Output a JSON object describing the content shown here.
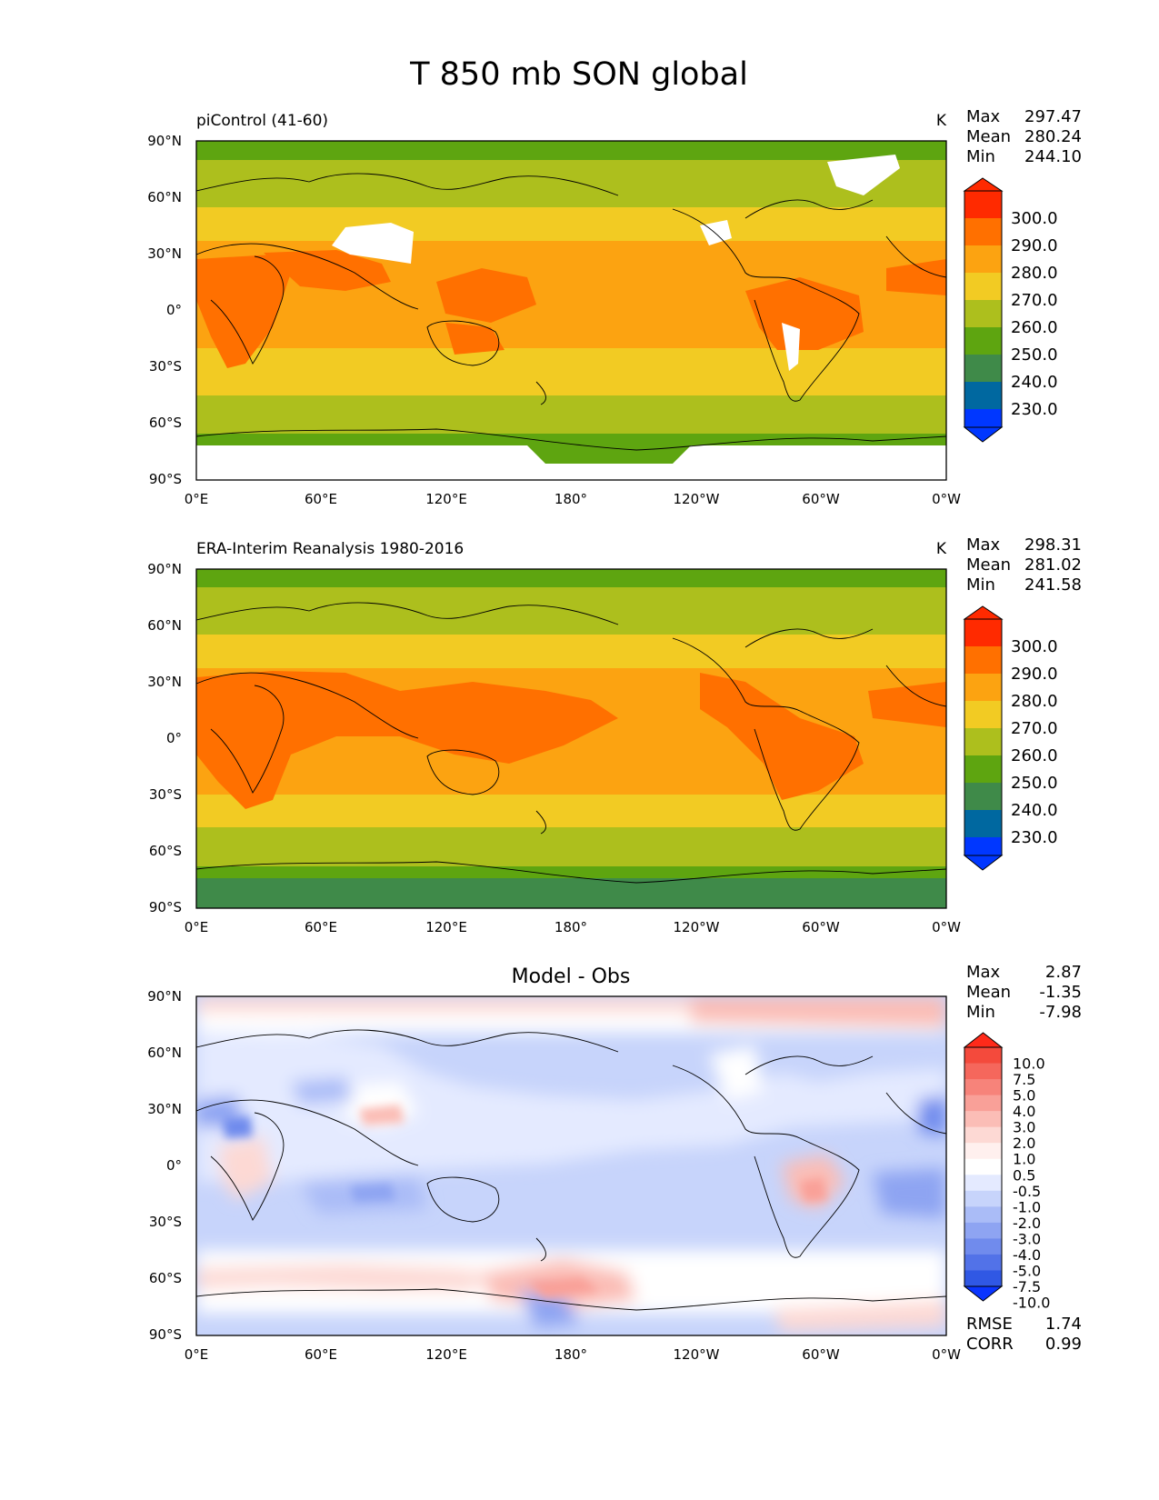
{
  "figure_title": "T 850 mb SON global",
  "chart_data": [
    {
      "type": "heatmap",
      "title": "piControl (41-60)",
      "units": "K",
      "stats": [
        {
          "label": "Max",
          "value": "297.47"
        },
        {
          "label": "Mean",
          "value": "280.24"
        },
        {
          "label": "Min",
          "value": "244.10"
        }
      ],
      "xticks": [
        "0°E",
        "60°E",
        "120°E",
        "180°",
        "120°W",
        "60°W",
        "0°W"
      ],
      "yticks": [
        "90°N",
        "60°N",
        "30°N",
        "0°",
        "30°S",
        "60°S",
        "90°S"
      ],
      "xlim": [
        0,
        360
      ],
      "ylim": [
        -90,
        90
      ],
      "colorbar": {
        "levels": [
          "300.0",
          "290.0",
          "280.0",
          "270.0",
          "260.0",
          "250.0",
          "240.0",
          "230.0"
        ],
        "colors": [
          "#ff2a00",
          "#ff7000",
          "#fca311",
          "#f2cb23",
          "#adbf1d",
          "#5ea510",
          "#3f8a49",
          "#0068a0",
          "#0037ff"
        ],
        "extend": "both"
      },
      "bands_top_to_bottom": [
        {
          "lat_from": 90,
          "lat_to": 80,
          "value_range": "250-260"
        },
        {
          "lat_from": 80,
          "lat_to": 55,
          "value_range": "260-270"
        },
        {
          "lat_from": 55,
          "lat_to": 37,
          "value_range": "270-280"
        },
        {
          "lat_from": 37,
          "lat_to": -20,
          "value_range": "280-290"
        },
        {
          "lat_from": -20,
          "lat_to": -45,
          "value_range": "270-280"
        },
        {
          "lat_from": -45,
          "lat_to": -65,
          "value_range": "260-270"
        },
        {
          "lat_from": -65,
          "lat_to": -72,
          "value_range": "250-260"
        },
        {
          "lat_from": -72,
          "lat_to": -90,
          "value_range": "missing"
        }
      ]
    },
    {
      "type": "heatmap",
      "title": "ERA-Interim Reanalysis 1980-2016",
      "units": "K",
      "stats": [
        {
          "label": "Max",
          "value": "298.31"
        },
        {
          "label": "Mean",
          "value": "281.02"
        },
        {
          "label": "Min",
          "value": "241.58"
        }
      ],
      "xticks": [
        "0°E",
        "60°E",
        "120°E",
        "180°",
        "120°W",
        "60°W",
        "0°W"
      ],
      "yticks": [
        "90°N",
        "60°N",
        "30°N",
        "0°",
        "30°S",
        "60°S",
        "90°S"
      ],
      "xlim": [
        0,
        360
      ],
      "ylim": [
        -90,
        90
      ],
      "colorbar": {
        "levels": [
          "300.0",
          "290.0",
          "280.0",
          "270.0",
          "260.0",
          "250.0",
          "240.0",
          "230.0"
        ],
        "colors": [
          "#ff2a00",
          "#ff7000",
          "#fca311",
          "#f2cb23",
          "#adbf1d",
          "#5ea510",
          "#3f8a49",
          "#0068a0",
          "#0037ff"
        ],
        "extend": "both"
      },
      "bands_top_to_bottom": [
        {
          "lat_from": 90,
          "lat_to": 80,
          "value_range": "250-260"
        },
        {
          "lat_from": 80,
          "lat_to": 55,
          "value_range": "260-270"
        },
        {
          "lat_from": 55,
          "lat_to": 37,
          "value_range": "270-280"
        },
        {
          "lat_from": 37,
          "lat_to": -20,
          "value_range": "280-290"
        },
        {
          "lat_from": -20,
          "lat_to": -45,
          "value_range": "270-280"
        },
        {
          "lat_from": -45,
          "lat_to": -60,
          "value_range": "260-270"
        },
        {
          "lat_from": -60,
          "lat_to": -72,
          "value_range": "250-260"
        },
        {
          "lat_from": -72,
          "lat_to": -90,
          "value_range": "240-250"
        }
      ]
    },
    {
      "type": "heatmap",
      "title": "Model - Obs",
      "units": "",
      "stats": [
        {
          "label": "Max",
          "value": "2.87"
        },
        {
          "label": "Mean",
          "value": "-1.35"
        },
        {
          "label": "Min",
          "value": "-7.98"
        }
      ],
      "xticks": [
        "0°E",
        "60°E",
        "120°E",
        "180°",
        "120°W",
        "60°W",
        "0°W"
      ],
      "yticks": [
        "90°N",
        "60°N",
        "30°N",
        "0°",
        "30°S",
        "60°S",
        "90°S"
      ],
      "xlim": [
        0,
        360
      ],
      "ylim": [
        -90,
        90
      ],
      "colorbar": {
        "levels": [
          "10.0",
          "7.5",
          "5.0",
          "4.0",
          "3.0",
          "2.0",
          "1.0",
          "0.5",
          "-0.5",
          "-1.0",
          "-2.0",
          "-3.0",
          "-4.0",
          "-5.0",
          "-7.5",
          "-10.0"
        ],
        "colors": [
          "#ff2a1a",
          "#f44a3c",
          "#f5675c",
          "#f7837a",
          "#f9a098",
          "#fbbdb6",
          "#fdd9d4",
          "#fff0ee",
          "#ffffff",
          "#e4eaff",
          "#c7d4fb",
          "#aabcf7",
          "#8ea4f2",
          "#708bed",
          "#5272e8",
          "#3058e4",
          "#0a35ff"
        ],
        "extend": "both"
      },
      "metrics": [
        {
          "label": "RMSE",
          "value": "1.74"
        },
        {
          "label": "CORR",
          "value": "0.99"
        }
      ]
    }
  ]
}
